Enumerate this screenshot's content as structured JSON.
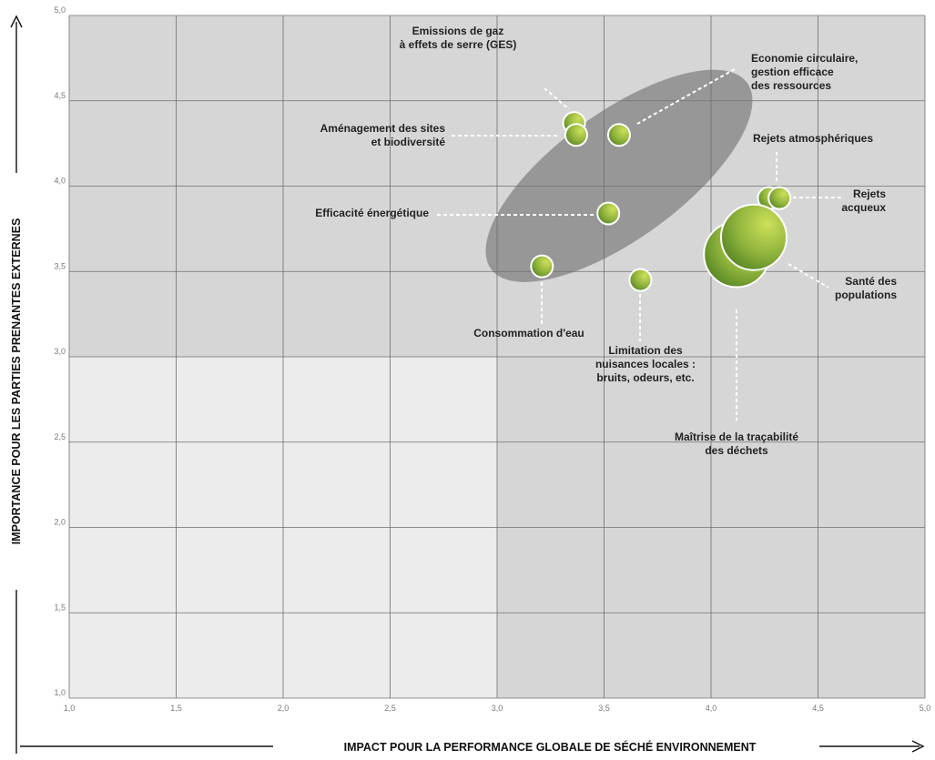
{
  "chart_data": {
    "type": "scatter",
    "xlabel": "IMPACT POUR LA PERFORMANCE GLOBALE DE SÉCHÉ ENVIRONNEMENT",
    "ylabel": "IMPORTANCE POUR LES PARTIES PRENANTES EXTERNES",
    "xlim": [
      1.0,
      5.0
    ],
    "ylim": [
      1.0,
      5.0
    ],
    "x_ticks": [
      "1,0",
      "1,5",
      "2,0",
      "2,5",
      "3,0",
      "3,5",
      "4,0",
      "4,5",
      "5,0"
    ],
    "y_ticks": [
      "1,0",
      "1,5",
      "2,0",
      "2,5",
      "3,0",
      "3,5",
      "4,0",
      "4,5",
      "5,0"
    ],
    "grid": true,
    "quadrant_split": {
      "x": 3.0,
      "y": 3.0
    },
    "highlight_ellipse": {
      "cx": 3.57,
      "cy": 4.06,
      "rx": 0.74,
      "ry": 0.37,
      "angle": -36
    },
    "colors": {
      "quadrant_low_low": "#ececec",
      "quadrant_high": "#d6d6d6",
      "ellipse": "#8c8c8c",
      "bubble_light": "#cde05a",
      "bubble_dark": "#4e7f22"
    },
    "points": [
      {
        "label": "Emissions de gaz\nà effets de serre (GES)",
        "x": 3.36,
        "y": 4.37,
        "size": 1
      },
      {
        "label": "Aménagement des sites\net biodiversité",
        "x": 3.37,
        "y": 4.3,
        "size": 1
      },
      {
        "label": "Economie circulaire,\ngestion efficace\ndes ressources",
        "x": 3.57,
        "y": 4.3,
        "size": 1
      },
      {
        "label": "Efficacité énergétique",
        "x": 3.52,
        "y": 3.84,
        "size": 1
      },
      {
        "label": "Consommation d'eau",
        "x": 3.21,
        "y": 3.53,
        "size": 1
      },
      {
        "label": "Limitation des\nnuisances locales :\nbruits, odeurs, etc.",
        "x": 3.67,
        "y": 3.45,
        "size": 1
      },
      {
        "label": "Rejets atmosphériques",
        "x": 4.27,
        "y": 3.93,
        "size": 1
      },
      {
        "label": "Rejets\nacqueux",
        "x": 4.32,
        "y": 3.93,
        "size": 1
      },
      {
        "label": "Maîtrise de la traçabilité\ndes déchets",
        "x": 4.12,
        "y": 3.6,
        "size": 3
      },
      {
        "label": "Santé des\npopulations",
        "x": 4.2,
        "y": 3.7,
        "size": 3
      }
    ]
  }
}
